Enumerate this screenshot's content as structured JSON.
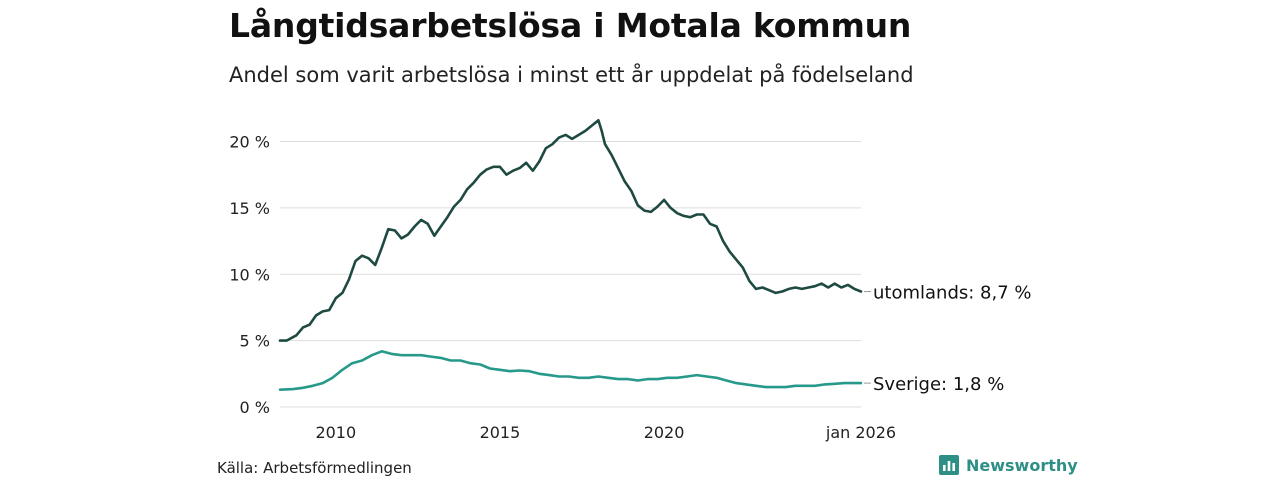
{
  "title": "Långtidsarbetslösa i Motala kommun",
  "subtitle": "Andel som varit arbetslösa i minst ett år uppdelat på födelseland",
  "source": "Källa: Arbetsförmedlingen",
  "brand": {
    "name": "Newsworthy",
    "icon": "newsworthy-logo-icon"
  },
  "colors": {
    "foreign": "#1e4a42",
    "sweden": "#26998b",
    "grid": "#dddddd",
    "axis_text": "#222222"
  },
  "chart_data": {
    "type": "line",
    "title": "Långtidsarbetslösa i Motala kommun",
    "xlabel": "",
    "ylabel": "",
    "ylim": [
      0,
      22
    ],
    "xlim": [
      2008.3,
      2026.0
    ],
    "y_ticks": [
      0,
      5,
      10,
      15,
      20
    ],
    "y_tick_labels": [
      "0 %",
      "5 %",
      "10 %",
      "15 %",
      "20 %"
    ],
    "x_ticks": [
      2010,
      2015,
      2020,
      2026
    ],
    "x_tick_labels": [
      "2010",
      "2015",
      "2020",
      "jan 2026"
    ],
    "series": [
      {
        "name": "utomlands",
        "label": "utomlands: 8,7 %",
        "color": "#1e4a42",
        "points": [
          [
            2008.3,
            5.0
          ],
          [
            2008.5,
            5.0
          ],
          [
            2008.8,
            5.4
          ],
          [
            2009.0,
            6.0
          ],
          [
            2009.2,
            6.2
          ],
          [
            2009.4,
            6.9
          ],
          [
            2009.6,
            7.2
          ],
          [
            2009.8,
            7.3
          ],
          [
            2010.0,
            8.2
          ],
          [
            2010.2,
            8.6
          ],
          [
            2010.4,
            9.6
          ],
          [
            2010.6,
            11.0
          ],
          [
            2010.8,
            11.4
          ],
          [
            2011.0,
            11.2
          ],
          [
            2011.2,
            10.7
          ],
          [
            2011.4,
            12.0
          ],
          [
            2011.6,
            13.4
          ],
          [
            2011.8,
            13.3
          ],
          [
            2012.0,
            12.7
          ],
          [
            2012.2,
            13.0
          ],
          [
            2012.4,
            13.6
          ],
          [
            2012.6,
            14.1
          ],
          [
            2012.8,
            13.8
          ],
          [
            2013.0,
            12.9
          ],
          [
            2013.2,
            13.6
          ],
          [
            2013.4,
            14.3
          ],
          [
            2013.6,
            15.1
          ],
          [
            2013.8,
            15.6
          ],
          [
            2014.0,
            16.4
          ],
          [
            2014.2,
            16.9
          ],
          [
            2014.4,
            17.5
          ],
          [
            2014.6,
            17.9
          ],
          [
            2014.8,
            18.1
          ],
          [
            2015.0,
            18.1
          ],
          [
            2015.2,
            17.5
          ],
          [
            2015.4,
            17.8
          ],
          [
            2015.6,
            18.0
          ],
          [
            2015.8,
            18.4
          ],
          [
            2016.0,
            17.8
          ],
          [
            2016.2,
            18.5
          ],
          [
            2016.4,
            19.5
          ],
          [
            2016.6,
            19.8
          ],
          [
            2016.8,
            20.3
          ],
          [
            2017.0,
            20.5
          ],
          [
            2017.2,
            20.2
          ],
          [
            2017.4,
            20.5
          ],
          [
            2017.6,
            20.8
          ],
          [
            2017.8,
            21.2
          ],
          [
            2018.0,
            21.6
          ],
          [
            2018.1,
            20.8
          ],
          [
            2018.2,
            19.8
          ],
          [
            2018.4,
            19.0
          ],
          [
            2018.6,
            18.0
          ],
          [
            2018.8,
            17.0
          ],
          [
            2019.0,
            16.3
          ],
          [
            2019.2,
            15.2
          ],
          [
            2019.4,
            14.8
          ],
          [
            2019.6,
            14.7
          ],
          [
            2019.8,
            15.1
          ],
          [
            2020.0,
            15.6
          ],
          [
            2020.2,
            15.0
          ],
          [
            2020.4,
            14.6
          ],
          [
            2020.6,
            14.4
          ],
          [
            2020.8,
            14.3
          ],
          [
            2021.0,
            14.5
          ],
          [
            2021.2,
            14.5
          ],
          [
            2021.4,
            13.8
          ],
          [
            2021.6,
            13.6
          ],
          [
            2021.8,
            12.5
          ],
          [
            2022.0,
            11.7
          ],
          [
            2022.2,
            11.1
          ],
          [
            2022.4,
            10.5
          ],
          [
            2022.6,
            9.5
          ],
          [
            2022.8,
            8.9
          ],
          [
            2023.0,
            9.0
          ],
          [
            2023.2,
            8.8
          ],
          [
            2023.4,
            8.6
          ],
          [
            2023.6,
            8.7
          ],
          [
            2023.8,
            8.9
          ],
          [
            2024.0,
            9.0
          ],
          [
            2024.2,
            8.9
          ],
          [
            2024.4,
            9.0
          ],
          [
            2024.6,
            9.1
          ],
          [
            2024.8,
            9.3
          ],
          [
            2025.0,
            9.0
          ],
          [
            2025.2,
            9.3
          ],
          [
            2025.4,
            9.0
          ],
          [
            2025.6,
            9.2
          ],
          [
            2025.8,
            8.9
          ],
          [
            2026.0,
            8.7
          ]
        ]
      },
      {
        "name": "Sverige",
        "label": "Sverige: 1,8 %",
        "color": "#26998b",
        "points": [
          [
            2008.3,
            1.3
          ],
          [
            2008.7,
            1.35
          ],
          [
            2009.0,
            1.45
          ],
          [
            2009.3,
            1.6
          ],
          [
            2009.6,
            1.8
          ],
          [
            2009.9,
            2.2
          ],
          [
            2010.2,
            2.8
          ],
          [
            2010.5,
            3.3
          ],
          [
            2010.8,
            3.5
          ],
          [
            2011.1,
            3.9
          ],
          [
            2011.4,
            4.2
          ],
          [
            2011.7,
            4.0
          ],
          [
            2012.0,
            3.9
          ],
          [
            2012.3,
            3.9
          ],
          [
            2012.6,
            3.9
          ],
          [
            2012.9,
            3.8
          ],
          [
            2013.2,
            3.7
          ],
          [
            2013.5,
            3.5
          ],
          [
            2013.8,
            3.5
          ],
          [
            2014.1,
            3.3
          ],
          [
            2014.4,
            3.2
          ],
          [
            2014.7,
            2.9
          ],
          [
            2015.0,
            2.8
          ],
          [
            2015.3,
            2.7
          ],
          [
            2015.6,
            2.75
          ],
          [
            2015.9,
            2.7
          ],
          [
            2016.2,
            2.5
          ],
          [
            2016.5,
            2.4
          ],
          [
            2016.8,
            2.3
          ],
          [
            2017.1,
            2.3
          ],
          [
            2017.4,
            2.2
          ],
          [
            2017.7,
            2.2
          ],
          [
            2018.0,
            2.3
          ],
          [
            2018.3,
            2.2
          ],
          [
            2018.6,
            2.1
          ],
          [
            2018.9,
            2.1
          ],
          [
            2019.2,
            2.0
          ],
          [
            2019.5,
            2.1
          ],
          [
            2019.8,
            2.1
          ],
          [
            2020.1,
            2.2
          ],
          [
            2020.4,
            2.2
          ],
          [
            2020.7,
            2.3
          ],
          [
            2021.0,
            2.4
          ],
          [
            2021.3,
            2.3
          ],
          [
            2021.6,
            2.2
          ],
          [
            2021.9,
            2.0
          ],
          [
            2022.2,
            1.8
          ],
          [
            2022.5,
            1.7
          ],
          [
            2022.8,
            1.6
          ],
          [
            2023.1,
            1.5
          ],
          [
            2023.4,
            1.5
          ],
          [
            2023.7,
            1.5
          ],
          [
            2024.0,
            1.6
          ],
          [
            2024.3,
            1.6
          ],
          [
            2024.6,
            1.6
          ],
          [
            2024.9,
            1.7
          ],
          [
            2025.2,
            1.75
          ],
          [
            2025.5,
            1.8
          ],
          [
            2025.8,
            1.8
          ],
          [
            2026.0,
            1.8
          ]
        ]
      }
    ]
  }
}
